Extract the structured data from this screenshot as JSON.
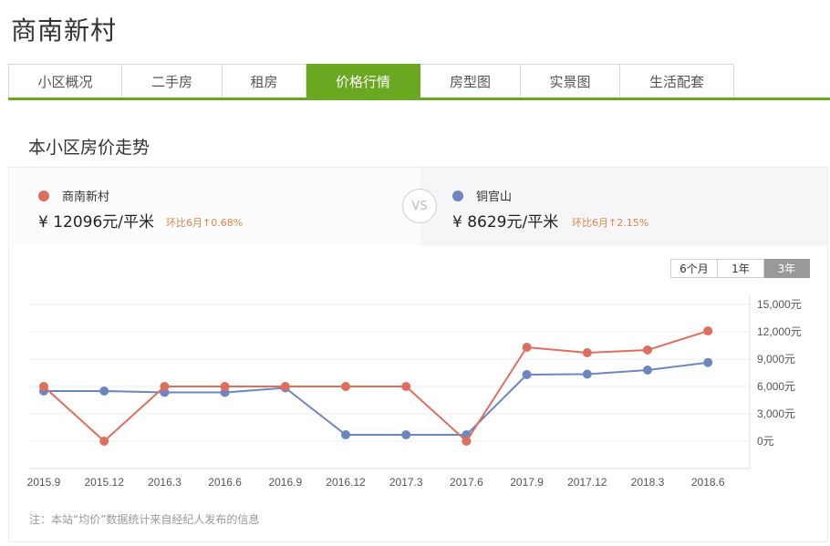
{
  "page": {
    "title": "商南新村",
    "tabs": [
      {
        "label": "小区概况",
        "active": false
      },
      {
        "label": "二手房",
        "active": false
      },
      {
        "label": "租房",
        "active": false
      },
      {
        "label": "价格行情",
        "active": true
      },
      {
        "label": "房型图",
        "active": false
      },
      {
        "label": "实景图",
        "active": false
      },
      {
        "label": "生活配套",
        "active": false
      }
    ],
    "section_title": "本小区房价走势",
    "compare": {
      "left": {
        "name": "商南新村",
        "price": "¥  12096元/平米",
        "change": "环比6月↑0.68%",
        "color": "#dd6f5e"
      },
      "vs": "VS",
      "right": {
        "name": "铜官山",
        "price": "¥  8629元/平米",
        "change": "环比6月↑2.15%",
        "color": "#6e86c0"
      }
    },
    "range_buttons": [
      {
        "label": "6个月",
        "active": false
      },
      {
        "label": "1年",
        "active": false
      },
      {
        "label": "3年",
        "active": true
      }
    ],
    "note": "注：本站“均价”数据统计来自经纪人发布的信息",
    "colors": {
      "accent": "#6aa821",
      "series_a": "#dd6f5e",
      "series_b": "#6e86c0",
      "change_text": "#e0864f"
    }
  },
  "chart_data": {
    "type": "line",
    "title": "本小区房价走势",
    "xlabel": "",
    "ylabel": "元/平米",
    "categories": [
      "2015.9",
      "2015.12",
      "2016.3",
      "2016.6",
      "2016.9",
      "2016.12",
      "2017.3",
      "2017.6",
      "2017.9",
      "2017.12",
      "2018.3",
      "2018.6"
    ],
    "series": [
      {
        "name": "商南新村",
        "color": "#dd6f5e",
        "values": [
          6000,
          0,
          6000,
          6000,
          6000,
          6000,
          6000,
          0,
          10300,
          9700,
          10000,
          12096
        ]
      },
      {
        "name": "铜官山",
        "color": "#6e86c0",
        "values": [
          5500,
          5500,
          5350,
          5350,
          5850,
          700,
          700,
          700,
          7300,
          7350,
          7800,
          8629
        ]
      }
    ],
    "yticks": [
      "0元",
      "3,000元",
      "6,000元",
      "9,000元",
      "12,000元",
      "15,000元"
    ],
    "ylim": [
      -1000,
      16000
    ],
    "grid": true,
    "y_axis_position": "right",
    "legend_position": "top (compare header)"
  }
}
